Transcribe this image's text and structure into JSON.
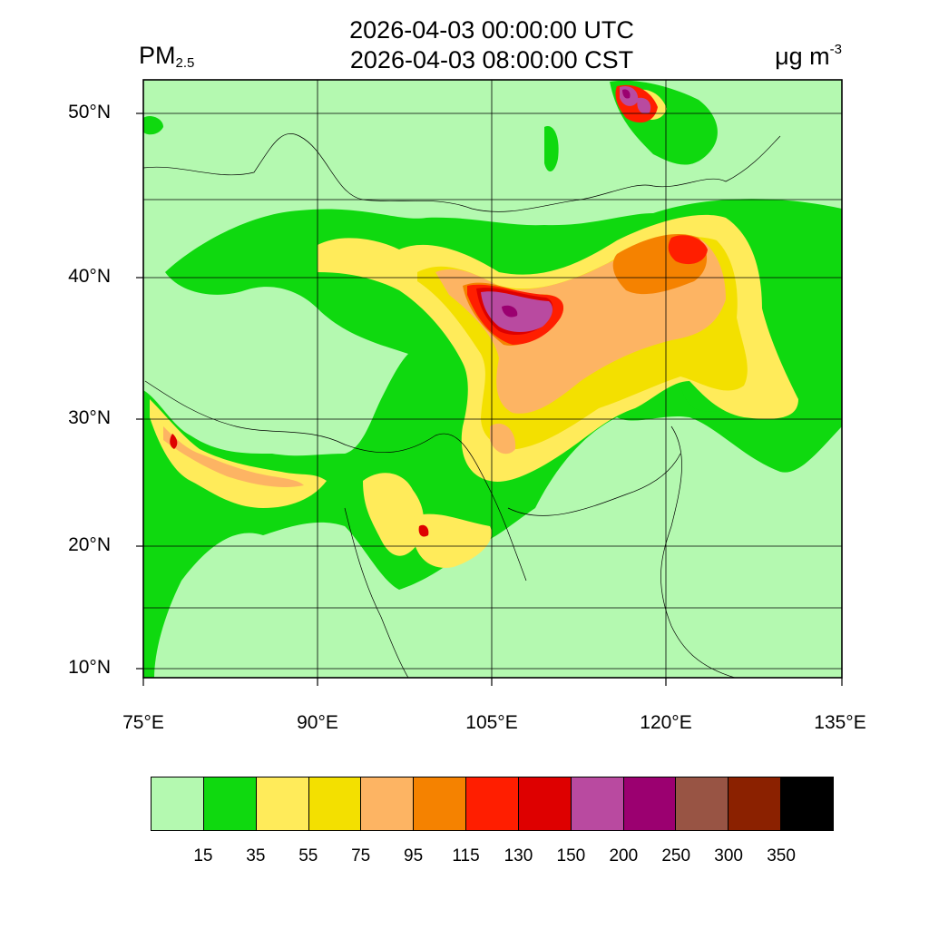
{
  "title": {
    "utc": "2026-04-03 00:00:00 UTC",
    "cst": "2026-04-03 08:00:00 CST"
  },
  "variable": {
    "name": "PM",
    "subscript": "2.5"
  },
  "unit": {
    "base": "μg m",
    "exponent": "-3"
  },
  "axes": {
    "lat_labels": [
      "50°N",
      "40°N",
      "30°N",
      "20°N",
      "10°N"
    ],
    "lon_labels": [
      "75°E",
      "90°E",
      "105°E",
      "120°E",
      "135°E"
    ]
  },
  "colorbar": {
    "levels": [
      "15",
      "35",
      "55",
      "75",
      "95",
      "115",
      "130",
      "150",
      "200",
      "250",
      "300",
      "350"
    ],
    "colors": [
      "#b4f9b0",
      "#0fd90f",
      "#ffeb5a",
      "#f3e000",
      "#fdb463",
      "#f58200",
      "#ff1e00",
      "#de0000",
      "#b94aa0",
      "#9b0070",
      "#985444",
      "#8b2100",
      "#000000"
    ]
  },
  "map": {
    "background_color": "#b4f9b0",
    "grid": true
  }
}
